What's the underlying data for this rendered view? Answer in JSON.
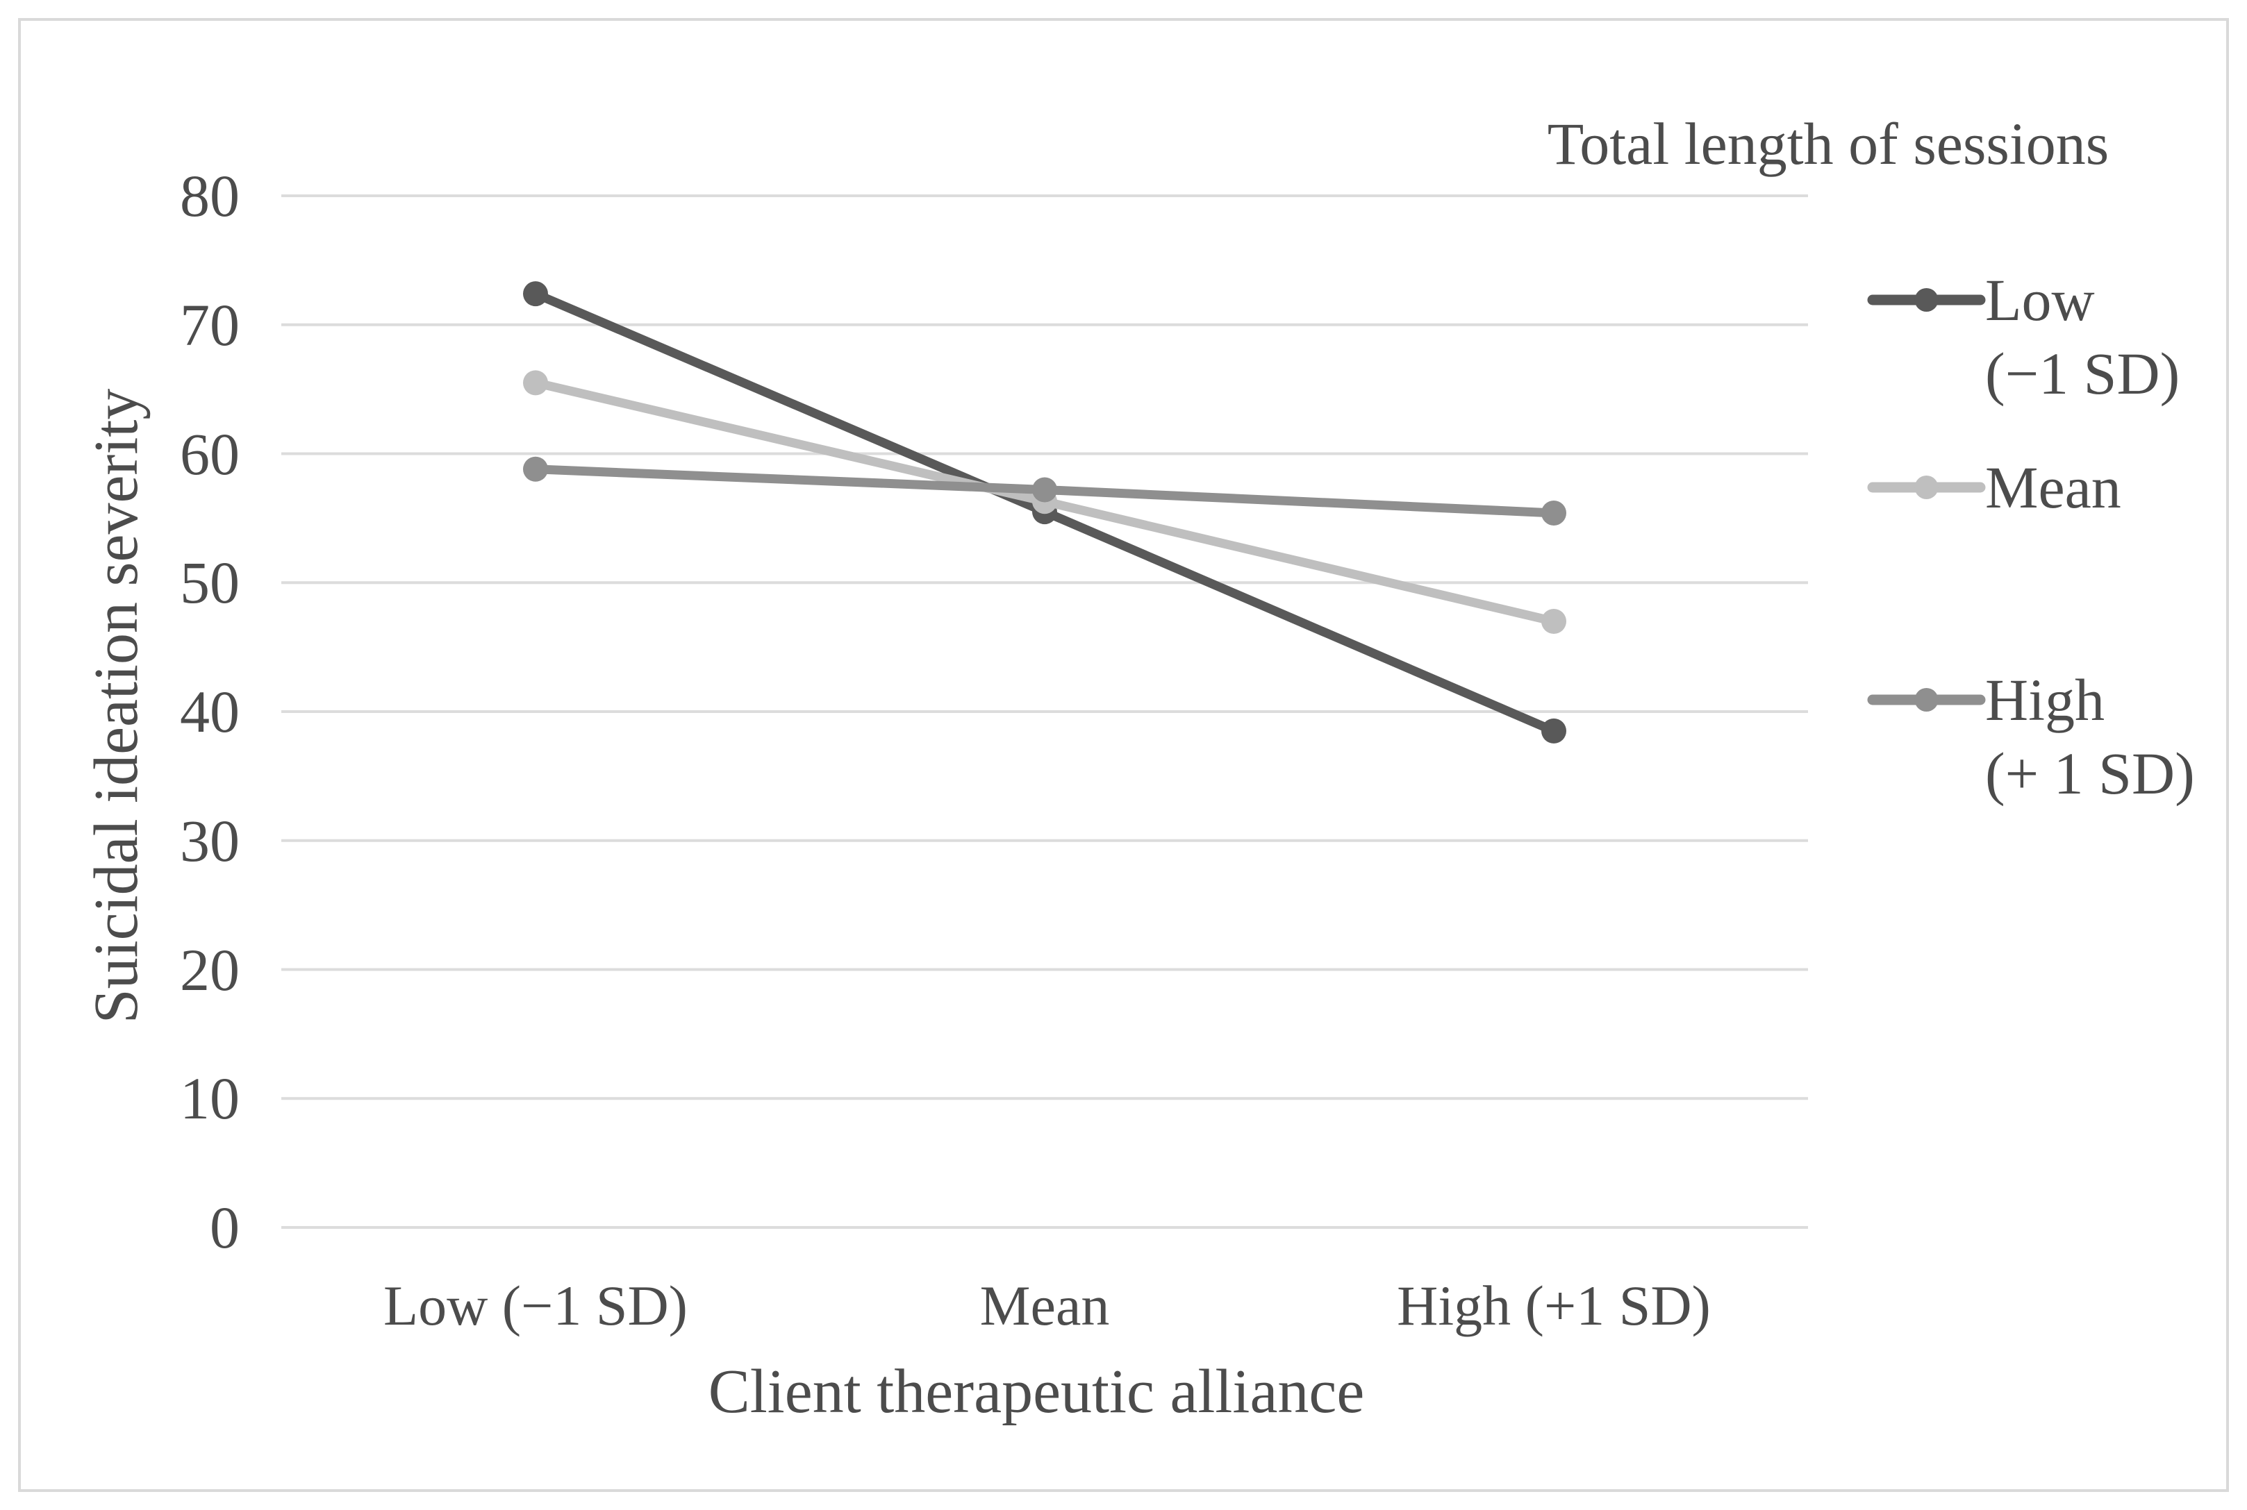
{
  "chart_data": {
    "type": "line",
    "title": "",
    "xlabel": "Client therapeutic alliance",
    "ylabel": "Suicidal ideation severity",
    "categories": [
      "Low (−1 SD)",
      "Mean",
      "High (+1 SD)"
    ],
    "series": [
      {
        "name": "Low (−1 SD)",
        "values": [
          72.4,
          55.5,
          38.5
        ],
        "color": "#595959"
      },
      {
        "name": "Mean",
        "values": [
          65.5,
          56.3,
          47.0
        ],
        "color": "#bfbfbf"
      },
      {
        "name": "High (+1 SD)",
        "values": [
          58.8,
          57.2,
          55.4
        ],
        "color": "#8f8f8f"
      }
    ],
    "ylim": [
      0,
      80
    ],
    "yticks": [
      0,
      10,
      20,
      30,
      40,
      50,
      60,
      70,
      80
    ],
    "grid": "horizontal",
    "legend": {
      "title": "Total length of sessions",
      "position": "right",
      "entries": [
        {
          "label_lines": [
            "Low",
            "(−1 SD)"
          ]
        },
        {
          "label_lines": [
            "Mean"
          ]
        },
        {
          "label_lines": [
            "High",
            "(+ 1 SD)"
          ]
        }
      ]
    },
    "colors": {
      "grid": "#dcdcdc",
      "text": "#4c4c4c",
      "frame_border": "#d9d9d9",
      "background": "#ffffff"
    }
  }
}
